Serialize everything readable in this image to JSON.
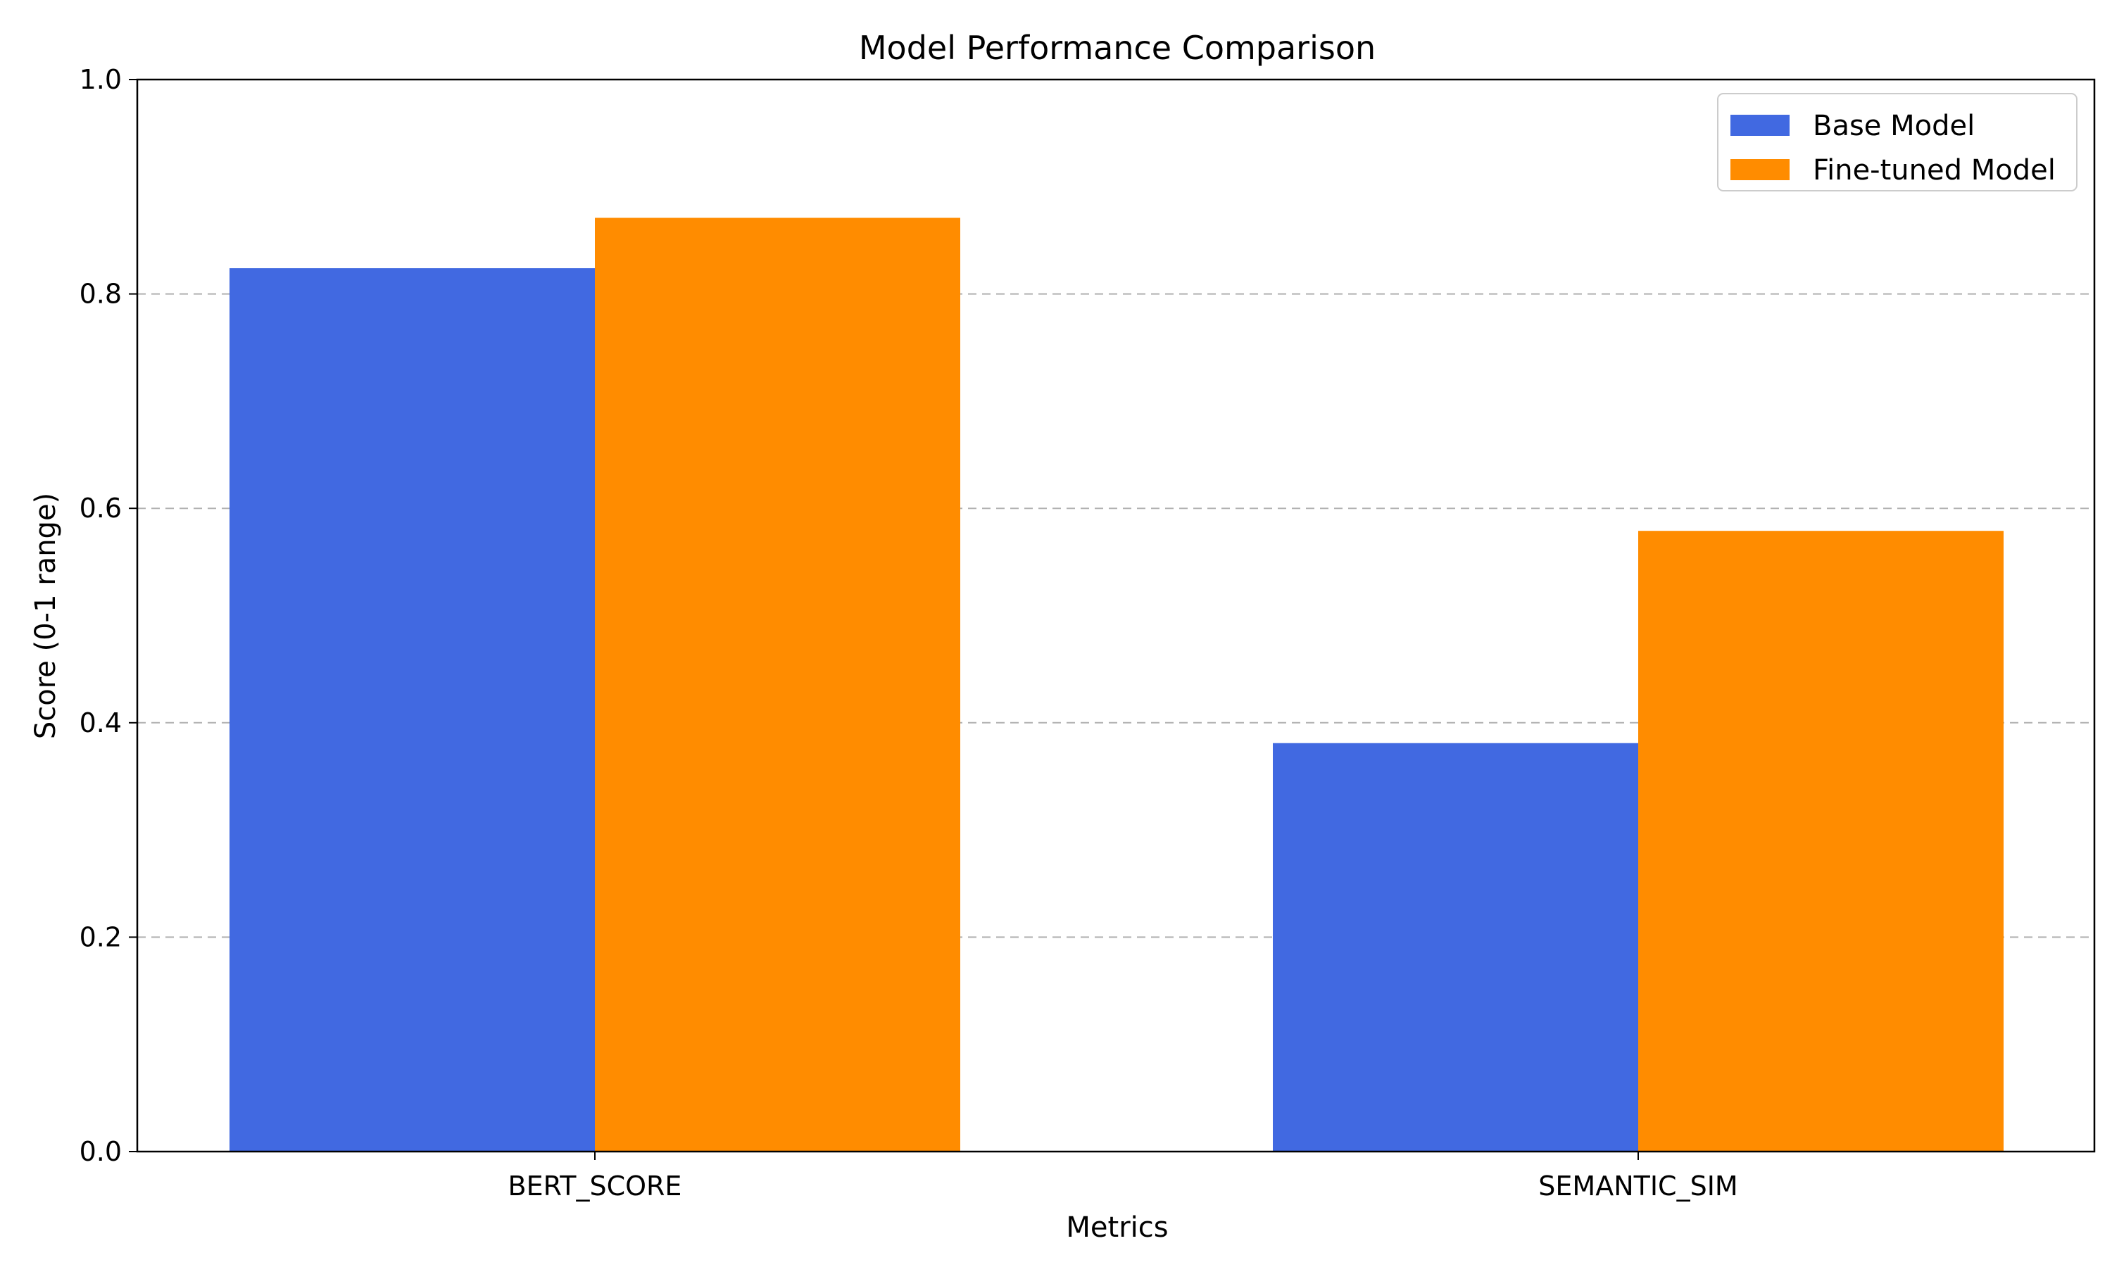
{
  "chart_data": {
    "type": "bar",
    "title": "Model Performance Comparison",
    "xlabel": "Metrics",
    "ylabel": "Score (0-1 range)",
    "categories": [
      "BERT_SCORE",
      "SEMANTIC_SIM"
    ],
    "series": [
      {
        "name": "Base Model",
        "values": [
          0.824,
          0.381
        ],
        "color": "#4169E1"
      },
      {
        "name": "Fine-tuned Model",
        "values": [
          0.871,
          0.579
        ],
        "color": "#FF8C00"
      }
    ],
    "ylim": [
      0,
      1.0
    ],
    "yticks": [
      "0.0",
      "0.2",
      "0.4",
      "0.6",
      "0.8",
      "1.0"
    ],
    "grid": "y-dashed",
    "legend_position": "top-right"
  }
}
